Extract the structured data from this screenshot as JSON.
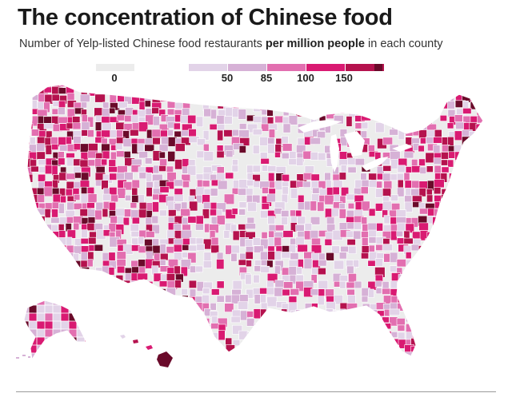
{
  "title": "The concentration of Chinese food",
  "subtitle": {
    "part1": "Number of Yelp-listed Chinese food restaurants ",
    "bold": "per million people",
    "part2": " in each county"
  },
  "legend": {
    "classes": [
      {
        "label": "0",
        "color": "#ececec"
      },
      {
        "label": "",
        "color": "#e2d3e8"
      },
      {
        "label": "50",
        "color": "#d6b1d6"
      },
      {
        "label": "85",
        "color": "#e26fb0"
      },
      {
        "label": "100",
        "color": "#d91a72"
      },
      {
        "label": "150",
        "color": "#b5124e"
      },
      {
        "label": "",
        "color": "#6a0a2a"
      }
    ],
    "breaks": [
      "0",
      "50",
      "85",
      "100",
      "150"
    ]
  },
  "colors": {
    "bins": [
      "#ececec",
      "#e2d3e8",
      "#d6b1d6",
      "#e26fb0",
      "#d91a72",
      "#b5124e",
      "#6a0a2a"
    ],
    "borders": "#ffffff"
  }
}
